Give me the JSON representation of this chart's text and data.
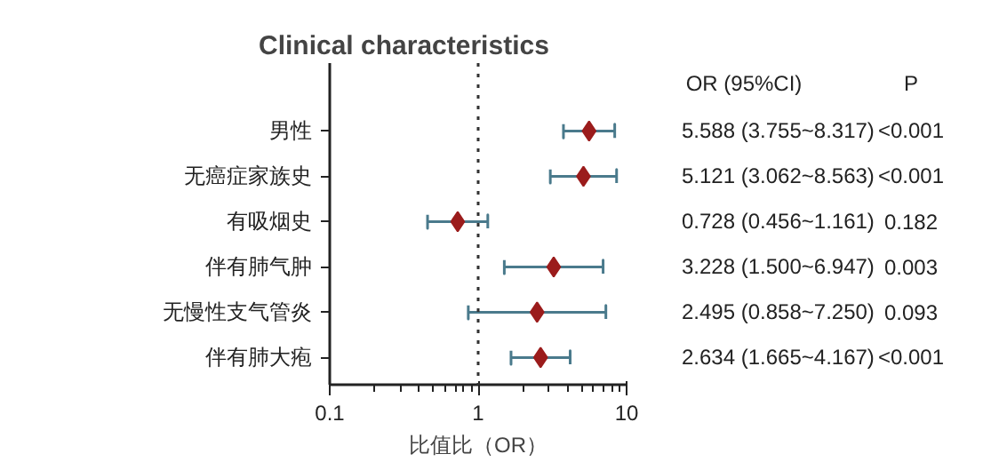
{
  "chart_data": {
    "type": "scatter",
    "title": "Clinical characteristics",
    "xlabel": "比值比（OR）",
    "orientation": "horizontal",
    "categories": [
      "男性",
      "无癌症家族史",
      "有吸烟史",
      "伴有肺气肿",
      "无慢性支气管炎",
      "伴有肺大疱"
    ],
    "color": "#9b1c1c",
    "values": [
      5.588,
      5.121,
      0.728,
      3.228,
      2.495,
      2.634
    ],
    "errors": [
      [
        3.755,
        8.317
      ],
      [
        3.062,
        8.563
      ],
      [
        0.456,
        1.161
      ],
      [
        1.5,
        6.947
      ],
      [
        0.858,
        7.25
      ],
      [
        1.665,
        4.167
      ]
    ],
    "value_labels": [
      "5.588 (3.755~8.317)",
      "5.121 (3.062~8.563)",
      "0.728 (0.456~1.161)",
      "3.228 (1.500~6.947)",
      "2.495 (0.858~7.250)",
      "2.634 (1.665~4.167)"
    ],
    "annotations": [
      "OR (95%CI)",
      "P",
      "<0.001",
      "<0.001",
      "0.182",
      "0.003",
      "0.093",
      "<0.001"
    ],
    "log": "x",
    "xlim": [
      0.1,
      10
    ],
    "xticks": [
      0.1,
      1,
      10
    ],
    "ref_lines": [
      {
        "axis": "x",
        "value": 1,
        "line_style": "dotted",
        "color": "#333333"
      }
    ],
    "marker": "diamond",
    "grid": false,
    "legend": false
  }
}
